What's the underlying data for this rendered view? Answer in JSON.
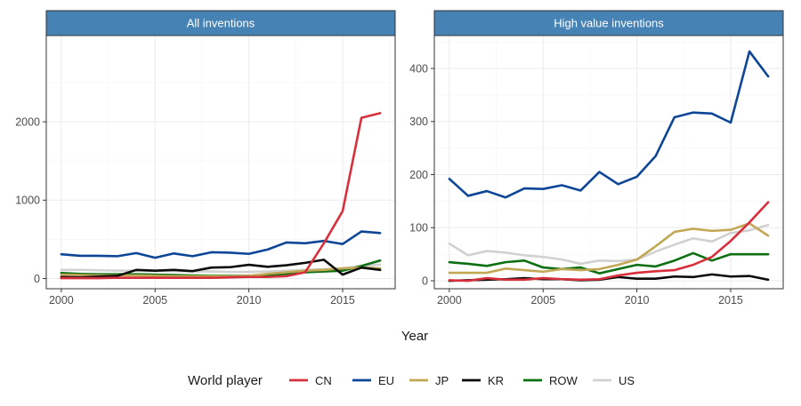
{
  "chart_data": [
    {
      "type": "line",
      "title": "All inventions",
      "xlabel": "Year",
      "ylabel": "",
      "xlim": [
        1999.2,
        2017.8
      ],
      "ylim": [
        -130,
        3100
      ],
      "xticks": [
        2000,
        2005,
        2010,
        2015
      ],
      "yticks": [
        0,
        1000,
        2000
      ],
      "x": [
        2000,
        2001,
        2002,
        2003,
        2004,
        2005,
        2006,
        2007,
        2008,
        2009,
        2010,
        2011,
        2012,
        2013,
        2014,
        2015,
        2016,
        2017
      ],
      "series": [
        {
          "name": "US",
          "values": [
            110,
            110,
            105,
            100,
            100,
            95,
            95,
            90,
            90,
            85,
            85,
            90,
            100,
            110,
            120,
            130,
            160,
            180
          ]
        },
        {
          "name": "ROW",
          "values": [
            70,
            60,
            55,
            55,
            55,
            50,
            45,
            40,
            35,
            35,
            35,
            45,
            60,
            80,
            90,
            100,
            160,
            230
          ]
        },
        {
          "name": "JP",
          "values": [
            50,
            45,
            40,
            40,
            40,
            35,
            30,
            30,
            30,
            30,
            35,
            60,
            80,
            100,
            110,
            130,
            140,
            130
          ]
        },
        {
          "name": "KR",
          "values": [
            20,
            15,
            25,
            35,
            110,
            100,
            110,
            95,
            140,
            145,
            175,
            150,
            170,
            200,
            240,
            50,
            140,
            110
          ]
        },
        {
          "name": "EU",
          "values": [
            310,
            290,
            290,
            285,
            325,
            265,
            320,
            285,
            335,
            330,
            315,
            370,
            460,
            450,
            480,
            440,
            600,
            580
          ]
        },
        {
          "name": "CN",
          "values": [
            5,
            5,
            5,
            10,
            10,
            10,
            10,
            10,
            10,
            15,
            20,
            20,
            30,
            80,
            450,
            860,
            2050,
            2110
          ]
        }
      ]
    },
    {
      "type": "line",
      "title": "High value inventions",
      "xlabel": "Year",
      "ylabel": "",
      "xlim": [
        1999.2,
        2017.8
      ],
      "ylim": [
        -15,
        462
      ],
      "xticks": [
        2000,
        2005,
        2010,
        2015
      ],
      "yticks": [
        0,
        100,
        200,
        300,
        400
      ],
      "x": [
        2000,
        2001,
        2002,
        2003,
        2004,
        2005,
        2006,
        2007,
        2008,
        2009,
        2010,
        2011,
        2012,
        2013,
        2014,
        2015,
        2016,
        2017
      ],
      "series": [
        {
          "name": "US",
          "values": [
            70,
            48,
            56,
            53,
            48,
            45,
            40,
            32,
            38,
            37,
            40,
            55,
            68,
            80,
            74,
            90,
            95,
            105
          ]
        },
        {
          "name": "ROW",
          "values": [
            35,
            32,
            28,
            35,
            38,
            25,
            22,
            25,
            14,
            22,
            30,
            27,
            38,
            52,
            38,
            50,
            50,
            50
          ]
        },
        {
          "name": "JP",
          "values": [
            15,
            15,
            15,
            23,
            20,
            17,
            22,
            20,
            22,
            30,
            40,
            65,
            92,
            98,
            94,
            96,
            108,
            85
          ]
        },
        {
          "name": "KR",
          "values": [
            0,
            1,
            2,
            3,
            5,
            3,
            3,
            1,
            2,
            7,
            4,
            4,
            8,
            7,
            12,
            8,
            9,
            2
          ]
        },
        {
          "name": "EU",
          "values": [
            192,
            160,
            169,
            157,
            174,
            173,
            180,
            170,
            205,
            182,
            196,
            235,
            308,
            317,
            315,
            298,
            432,
            385
          ]
        },
        {
          "name": "CN",
          "values": [
            1,
            0,
            5,
            2,
            2,
            5,
            3,
            2,
            3,
            10,
            15,
            18,
            20,
            30,
            45,
            75,
            110,
            148
          ]
        }
      ]
    }
  ],
  "legend": {
    "title": "World player",
    "placement": "bottom",
    "entries": [
      "CN",
      "EU",
      "JP",
      "KR",
      "ROW",
      "US"
    ]
  },
  "colors": {
    "CN": "#d7303c",
    "EU": "#0d4697",
    "JP": "#c2a855",
    "KR": "#0a0a0a",
    "ROW": "#0c6f12",
    "US": "#d1d1d1",
    "strip": "#4682b4",
    "panel_border": "#333333"
  },
  "axis": {
    "xlabel": "Year"
  }
}
